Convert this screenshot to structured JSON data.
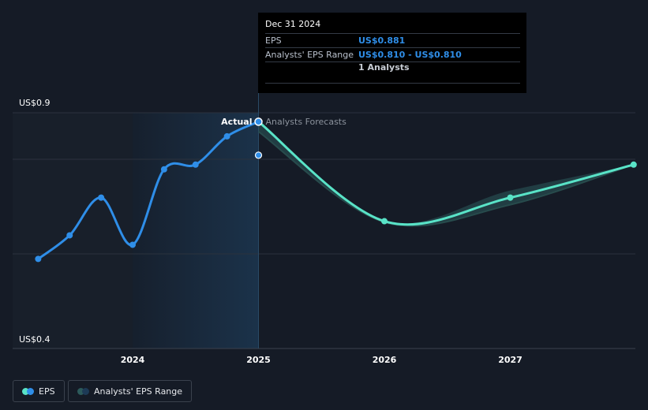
{
  "tooltip": {
    "date": "Dec 31 2024",
    "eps_label": "EPS",
    "eps_value": "US$0.881",
    "range_label": "Analysts' EPS Range",
    "range_value": "US$0.810 - US$0.810",
    "analysts": "1 Analysts"
  },
  "legend": {
    "eps_label": "EPS",
    "range_label": "Analysts' EPS Range"
  },
  "colors": {
    "background": "#151b26",
    "actual_line": "#2f8ee8",
    "forecast_line": "#59e3c7",
    "forecast_band": "#2c5a5b",
    "past_shade": "#1d3a56"
  },
  "chart_data": {
    "type": "line",
    "y_tick_labels": [
      "US$0.9",
      "US$0.4"
    ],
    "x_tick_labels": [
      "2024",
      "2025",
      "2026",
      "2027"
    ],
    "annotations": {
      "actual": "Actual",
      "forecast": "Analysts Forecasts"
    },
    "ylim": [
      0.4,
      0.9
    ],
    "grid": true,
    "series": [
      {
        "name": "EPS",
        "points": [
          {
            "x": 2023.25,
            "y": 0.59
          },
          {
            "x": 2023.5,
            "y": 0.64
          },
          {
            "x": 2023.75,
            "y": 0.72
          },
          {
            "x": 2024.0,
            "y": 0.62
          },
          {
            "x": 2024.25,
            "y": 0.78
          },
          {
            "x": 2024.5,
            "y": 0.79
          },
          {
            "x": 2024.75,
            "y": 0.85
          },
          {
            "x": 2025.0,
            "y": 0.881
          }
        ]
      },
      {
        "name": "Analysts Forecasts",
        "points": [
          {
            "x": 2025.0,
            "y": 0.881
          },
          {
            "x": 2026.0,
            "y": 0.67
          },
          {
            "x": 2027.0,
            "y": 0.72
          },
          {
            "x": 2027.98,
            "y": 0.79
          }
        ]
      },
      {
        "name": "Analysts' EPS Range",
        "upper": [
          {
            "x": 2025.0,
            "y": 0.881
          },
          {
            "x": 2026.0,
            "y": 0.67
          },
          {
            "x": 2027.0,
            "y": 0.735
          },
          {
            "x": 2027.98,
            "y": 0.79
          }
        ],
        "lower": [
          {
            "x": 2025.0,
            "y": 0.86
          },
          {
            "x": 2026.0,
            "y": 0.668
          },
          {
            "x": 2027.0,
            "y": 0.705
          },
          {
            "x": 2027.98,
            "y": 0.79
          }
        ]
      }
    ],
    "analyst_point": {
      "x": 2025.0,
      "y": 0.81
    }
  }
}
